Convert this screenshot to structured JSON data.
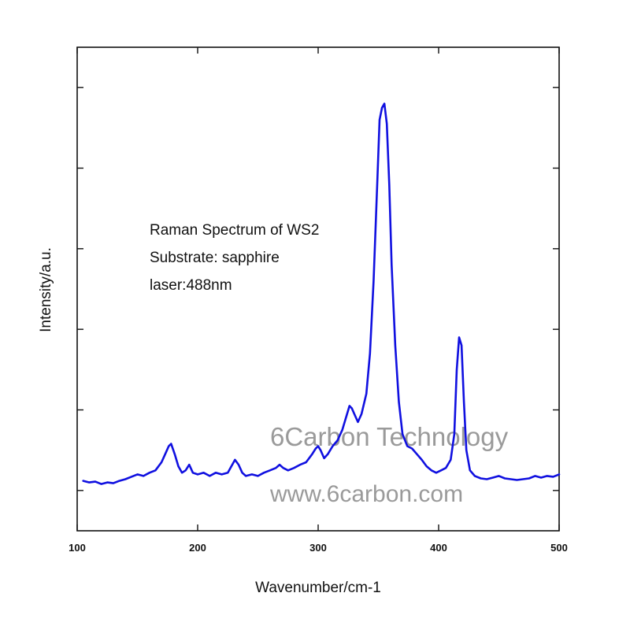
{
  "chart_data": {
    "type": "line",
    "title": "",
    "xlabel": "Wavenumber/cm-1",
    "ylabel": "Intensity/a.u.",
    "xlim": [
      100,
      500
    ],
    "ylim": [
      -0.5,
      5.5
    ],
    "x_ticks": [
      100,
      200,
      300,
      400,
      500
    ],
    "y_ticks": [
      0,
      1,
      2,
      3,
      4,
      5
    ],
    "y_tick_labels_shown": false,
    "grid": false,
    "legend": "none",
    "annotations": [
      "Raman Spectrum of WS2",
      "Substrate: sapphire",
      "laser:488nm"
    ],
    "watermark": [
      "6Carbon Technology",
      "www.6carbon.com"
    ],
    "line_color": "#1010e0",
    "series": [
      {
        "x": [
          105,
          110,
          115,
          120,
          125,
          130,
          135,
          140,
          145,
          150,
          155,
          160,
          165,
          170,
          173,
          176,
          178,
          181,
          184,
          187,
          190,
          193,
          196,
          200,
          205,
          210,
          215,
          220,
          225,
          228,
          231,
          234,
          237,
          240,
          245,
          250,
          255,
          260,
          265,
          268,
          271,
          275,
          280,
          285,
          290,
          295,
          298,
          300,
          302,
          305,
          308,
          312,
          316,
          320,
          323,
          326,
          328,
          330,
          333,
          336,
          340,
          343,
          346,
          349,
          351,
          353,
          355,
          357,
          359,
          361,
          364,
          367,
          370,
          374,
          378,
          382,
          386,
          390,
          394,
          398,
          402,
          406,
          410,
          413,
          415,
          417,
          419,
          421,
          423,
          426,
          430,
          435,
          440,
          445,
          450,
          455,
          460,
          465,
          470,
          475,
          480,
          485,
          490,
          495,
          500
        ],
        "y": [
          0.12,
          0.1,
          0.11,
          0.08,
          0.1,
          0.09,
          0.12,
          0.14,
          0.17,
          0.2,
          0.18,
          0.22,
          0.25,
          0.35,
          0.45,
          0.55,
          0.58,
          0.45,
          0.3,
          0.22,
          0.25,
          0.32,
          0.22,
          0.2,
          0.22,
          0.18,
          0.22,
          0.2,
          0.22,
          0.3,
          0.38,
          0.32,
          0.22,
          0.18,
          0.2,
          0.18,
          0.22,
          0.25,
          0.28,
          0.32,
          0.28,
          0.25,
          0.28,
          0.32,
          0.35,
          0.45,
          0.52,
          0.55,
          0.5,
          0.4,
          0.45,
          0.55,
          0.62,
          0.75,
          0.9,
          1.05,
          1.02,
          0.95,
          0.85,
          0.95,
          1.2,
          1.7,
          2.6,
          3.8,
          4.6,
          4.75,
          4.8,
          4.55,
          3.8,
          2.8,
          1.8,
          1.1,
          0.7,
          0.55,
          0.52,
          0.45,
          0.38,
          0.3,
          0.25,
          0.22,
          0.25,
          0.28,
          0.38,
          0.7,
          1.5,
          1.9,
          1.8,
          1.1,
          0.5,
          0.25,
          0.18,
          0.15,
          0.14,
          0.16,
          0.18,
          0.15,
          0.14,
          0.13,
          0.14,
          0.15,
          0.18,
          0.16,
          0.18,
          0.17,
          0.2
        ]
      }
    ]
  }
}
